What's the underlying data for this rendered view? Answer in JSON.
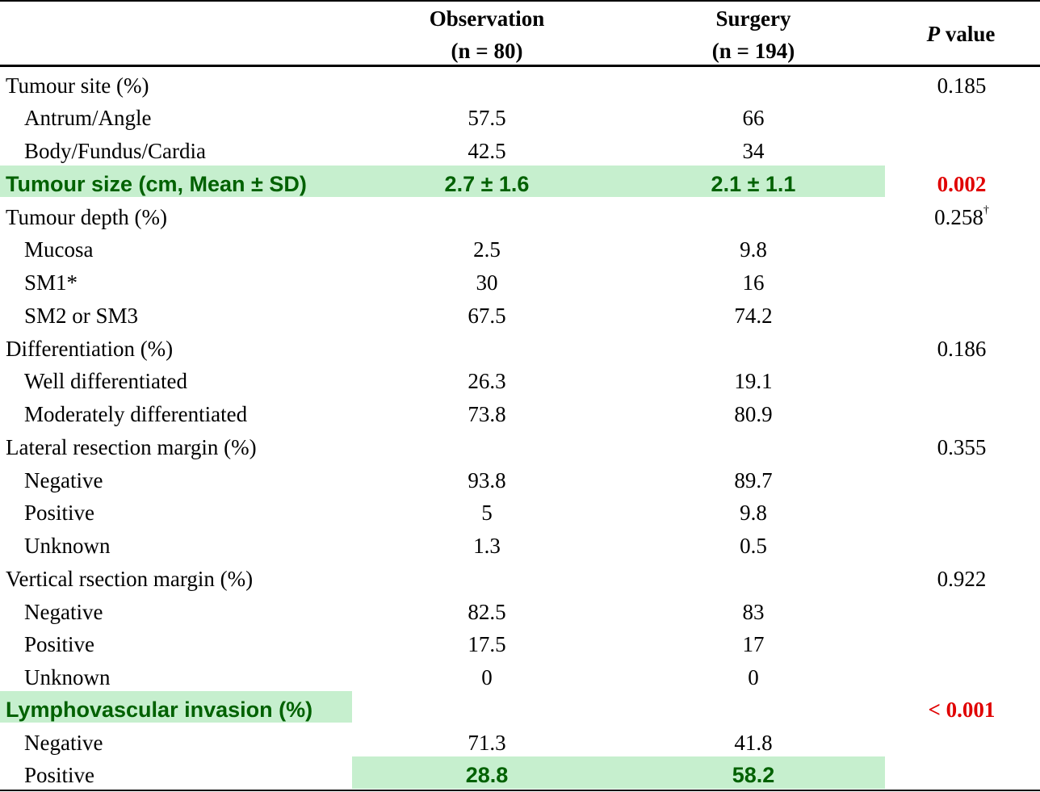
{
  "header": {
    "observation_line1": "Observation",
    "observation_line2": "(n = 80)",
    "surgery_line1": "Surgery",
    "surgery_line2": "(n = 194)",
    "p_italic": "P",
    "p_rest": " value"
  },
  "rows": [
    {
      "label": "Tumour site (%)",
      "obs": "",
      "surg": "",
      "p": "0.185"
    },
    {
      "label": "Antrum/Angle",
      "obs": "57.5",
      "surg": "66",
      "p": ""
    },
    {
      "label": "Body/Fundus/Cardia",
      "obs": "42.5",
      "surg": "34",
      "p": ""
    },
    {
      "label": "Tumour size (cm, Mean ± SD)",
      "obs": "2.7 ± 1.6",
      "surg": "2.1 ± 1.1",
      "p": "0.002"
    },
    {
      "label": "Tumour depth (%)",
      "obs": "",
      "surg": "",
      "p": "0.258",
      "p_sup": "†"
    },
    {
      "label": "Mucosa",
      "obs": "2.5",
      "surg": "9.8",
      "p": ""
    },
    {
      "label": "SM1*",
      "obs": "30",
      "surg": "16",
      "p": ""
    },
    {
      "label": "SM2 or SM3",
      "obs": "67.5",
      "surg": "74.2",
      "p": ""
    },
    {
      "label": "Differentiation (%)",
      "obs": "",
      "surg": "",
      "p": "0.186"
    },
    {
      "label": "Well differentiated",
      "obs": "26.3",
      "surg": "19.1",
      "p": ""
    },
    {
      "label": "Moderately differentiated",
      "obs": "73.8",
      "surg": "80.9",
      "p": ""
    },
    {
      "label": "Lateral resection margin (%)",
      "obs": "",
      "surg": "",
      "p": "0.355"
    },
    {
      "label": "Negative",
      "obs": "93.8",
      "surg": "89.7",
      "p": ""
    },
    {
      "label": "Positive",
      "obs": "5",
      "surg": "9.8",
      "p": ""
    },
    {
      "label": "Unknown",
      "obs": "1.3",
      "surg": "0.5",
      "p": ""
    },
    {
      "label": "Vertical rsection margin (%)",
      "obs": "",
      "surg": "",
      "p": "0.922"
    },
    {
      "label": "Negative",
      "obs": "82.5",
      "surg": "83",
      "p": ""
    },
    {
      "label": "Positive",
      "obs": "17.5",
      "surg": "17",
      "p": ""
    },
    {
      "label": "Unknown",
      "obs": "0",
      "surg": "0",
      "p": ""
    },
    {
      "label": "Lymphovascular invasion (%)",
      "obs": "",
      "surg": "",
      "p": "< 0.001"
    },
    {
      "label": "Negative",
      "obs": "71.3",
      "surg": "41.8",
      "p": ""
    },
    {
      "label": "Positive",
      "obs": "28.8",
      "surg": "58.2",
      "p": ""
    }
  ],
  "colors": {
    "highlight_fill": "#c6efce",
    "highlight_text": "#006100",
    "significant_p": "#e00000"
  }
}
